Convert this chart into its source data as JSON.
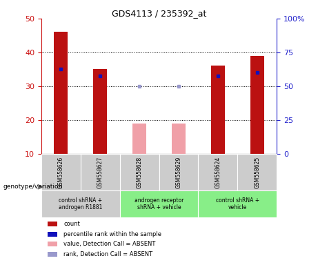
{
  "title": "GDS4113 / 235392_at",
  "samples": [
    "GSM558626",
    "GSM558627",
    "GSM558628",
    "GSM558629",
    "GSM558624",
    "GSM558625"
  ],
  "count_values": [
    46,
    35,
    null,
    null,
    36,
    39
  ],
  "count_absent": [
    null,
    null,
    19,
    19,
    null,
    null
  ],
  "percentile_values": [
    35,
    33,
    null,
    null,
    33,
    34
  ],
  "percentile_absent": [
    null,
    null,
    30,
    30,
    null,
    null
  ],
  "ylim_left": [
    10,
    50
  ],
  "ylim_right": [
    0,
    100
  ],
  "yticks_left": [
    10,
    20,
    30,
    40,
    50
  ],
  "yticks_right": [
    0,
    25,
    50,
    75,
    100
  ],
  "ytick_labels_right": [
    "0",
    "25",
    "50",
    "75",
    "100%"
  ],
  "color_red": "#bb1111",
  "color_pink": "#f0a0a8",
  "color_blue": "#1111bb",
  "color_blue_light": "#9999cc",
  "color_axis_left": "#cc1111",
  "color_axis_right": "#2222cc",
  "bar_width": 0.35,
  "sample_label_bg": "#cccccc",
  "group_label_bg_grey": "#cccccc",
  "group_label_bg_green": "#88ee88",
  "group_configs": [
    {
      "start": 0,
      "end": 1,
      "color": "#cccccc",
      "label": "control shRNA +\nandrogen R1881"
    },
    {
      "start": 2,
      "end": 3,
      "color": "#88ee88",
      "label": "androgen receptor\nshRNA + vehicle"
    },
    {
      "start": 4,
      "end": 5,
      "color": "#88ee88",
      "label": "control shRNA +\nvehicle"
    }
  ],
  "legend_items": [
    {
      "color": "#bb1111",
      "label": "count"
    },
    {
      "color": "#1111bb",
      "label": "percentile rank within the sample"
    },
    {
      "color": "#f0a0a8",
      "label": "value, Detection Call = ABSENT"
    },
    {
      "color": "#9999cc",
      "label": "rank, Detection Call = ABSENT"
    }
  ]
}
